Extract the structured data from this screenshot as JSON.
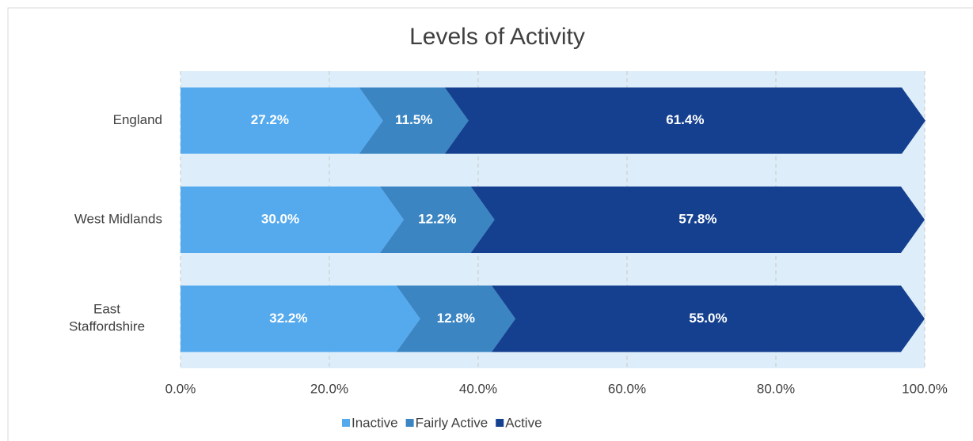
{
  "chart_data": {
    "type": "stacked-chevron-bar",
    "title": "Levels of Activity",
    "categories": [
      "England",
      "West Midlands",
      "East Staffordshire"
    ],
    "series": [
      {
        "name": "Inactive",
        "color": "#55aaee",
        "values": [
          27.2,
          30.0,
          32.2
        ],
        "value_labels": [
          "27.2%",
          "30.0%",
          "32.2%"
        ]
      },
      {
        "name": "Fairly Active",
        "color": "#3b85c3",
        "values": [
          11.5,
          12.2,
          12.8
        ],
        "value_labels": [
          "11.5%",
          "12.2%",
          "12.8%"
        ]
      },
      {
        "name": "Active",
        "color": "#15408f",
        "values": [
          61.4,
          57.8,
          55.0
        ],
        "value_labels": [
          "61.4%",
          "57.8%",
          "55.0%"
        ]
      }
    ],
    "xlim": [
      0,
      100
    ],
    "xticks": [
      {
        "value": 0,
        "label": "0.0%"
      },
      {
        "value": 20,
        "label": "20.0%"
      },
      {
        "value": 40,
        "label": "40.0%"
      },
      {
        "value": 60,
        "label": "60.0%"
      },
      {
        "value": 80,
        "label": "80.0%"
      },
      {
        "value": 100,
        "label": "100.0%"
      }
    ],
    "grid": true,
    "legend": "bottom"
  }
}
